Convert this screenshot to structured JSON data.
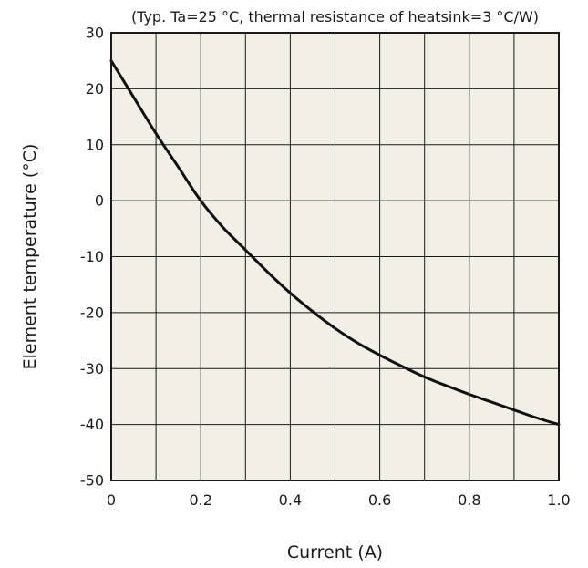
{
  "chart_data": {
    "type": "line",
    "title": "",
    "subtitle": "(Typ. Ta=25 °C, thermal resistance of heatsink=3 °C/W)",
    "xlabel": "Current (A)",
    "ylabel": "Element temperature (°C)",
    "xlim": [
      0,
      1.0
    ],
    "ylim": [
      -50,
      30
    ],
    "x_tick_labels": [
      "0",
      "0.2",
      "0.4",
      "0.6",
      "0.8",
      "1.0"
    ],
    "y_tick_labels": [
      "30",
      "20",
      "10",
      "0",
      "-10",
      "-20",
      "-30",
      "-40",
      "-50"
    ],
    "grid": true,
    "series": [
      {
        "x": [
          0,
          0.05,
          0.1,
          0.15,
          0.2,
          0.25,
          0.3,
          0.35,
          0.4,
          0.45,
          0.5,
          0.55,
          0.6,
          0.65,
          0.7,
          0.75,
          0.8,
          0.85,
          0.9,
          0.95,
          1.0
        ],
        "y": [
          25,
          18.5,
          12,
          6,
          0,
          -4.8,
          -8.8,
          -12.8,
          -16.5,
          -19.8,
          -22.8,
          -25.4,
          -27.6,
          -29.6,
          -31.5,
          -33.1,
          -34.6,
          -36,
          -37.4,
          -38.8,
          -40
        ]
      }
    ]
  },
  "colors": {
    "plot_background": "#f1efe6",
    "grid": "#1a1a1a",
    "line": "#111111"
  }
}
